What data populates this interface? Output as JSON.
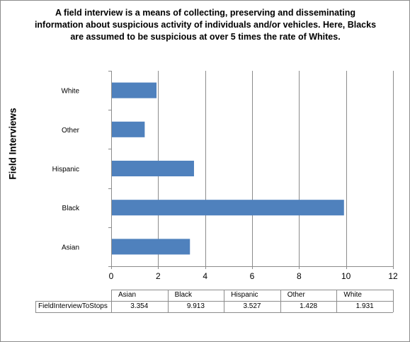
{
  "chart_data": {
    "type": "bar",
    "orientation": "horizontal",
    "title_lines": [
      "A field interview is a means of collecting, preserving and disseminating",
      "information about suspicious activity of individuals and/or vehicles. Here, Blacks",
      "are assumed to be suspicious at over 5 times the rate of Whites."
    ],
    "ylabel": "Field Interviews",
    "xlabel": "",
    "categories": [
      "Asian",
      "Black",
      "Hispanic",
      "Other",
      "White"
    ],
    "series": [
      {
        "name": "FieldInterviewToStops",
        "values": [
          3.354,
          9.913,
          3.527,
          1.428,
          1.931
        ]
      }
    ],
    "xlim": [
      0,
      12
    ],
    "xticks": [
      0,
      2,
      4,
      6,
      8,
      10,
      12
    ],
    "grid": "vertical",
    "data_table": true,
    "legend": "none",
    "bar_color": "#4f81bd"
  }
}
